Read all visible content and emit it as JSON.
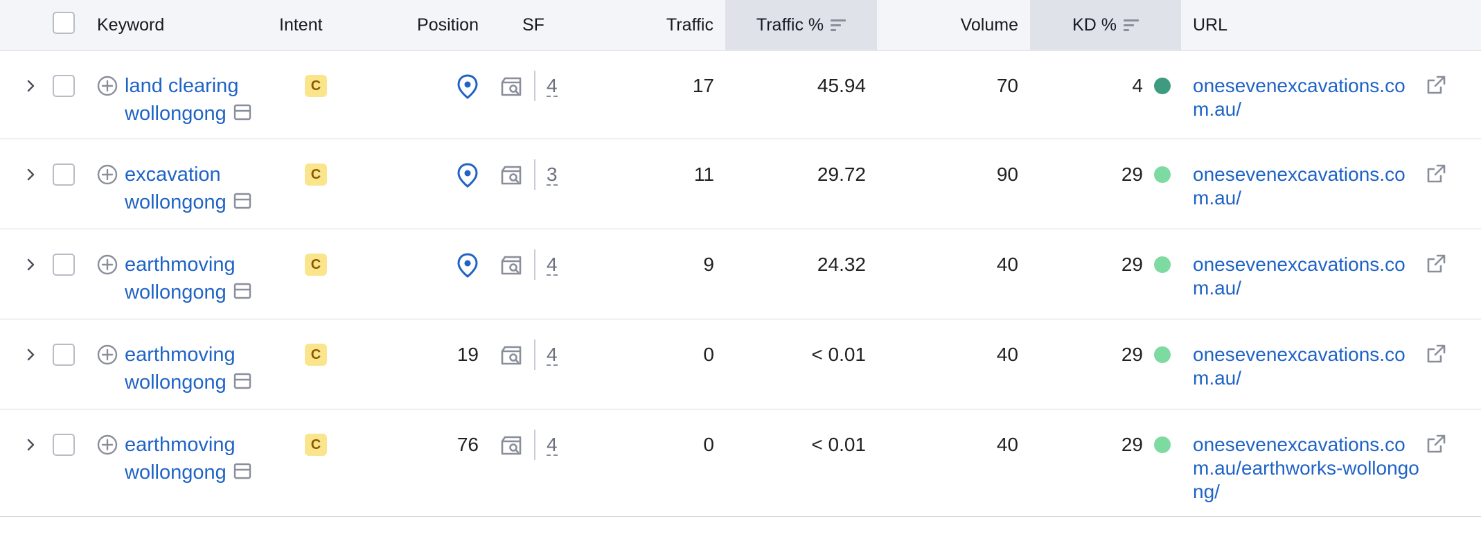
{
  "colors": {
    "link": "#1f63c6",
    "header_bg": "#f4f5f9",
    "sorted_header_bg": "#e0e2ea",
    "intent_badge_bg": "#fbe58c",
    "kd_dark": "#3f9b7f",
    "kd_light": "#7ddaa0",
    "border": "#d6d8df"
  },
  "header": {
    "keyword": "Keyword",
    "intent": "Intent",
    "position": "Position",
    "sf": "SF",
    "traffic": "Traffic",
    "traffic_pct": "Traffic %",
    "volume": "Volume",
    "kd_pct": "KD %",
    "url": "URL"
  },
  "rows": [
    {
      "keyword": "land clearing wollongong",
      "intent": "C",
      "position": "",
      "position_icon": "location-pin-icon",
      "sf": "4",
      "traffic": "17",
      "traffic_pct": "45.94",
      "volume": "70",
      "kd": "4",
      "kd_color": "#3f9b7f",
      "url": "onesevenexcavations.com.au/"
    },
    {
      "keyword": "excavation wollongong",
      "intent": "C",
      "position": "",
      "position_icon": "location-pin-icon",
      "sf": "3",
      "traffic": "11",
      "traffic_pct": "29.72",
      "volume": "90",
      "kd": "29",
      "kd_color": "#7ddaa0",
      "url": "onesevenexcavations.com.au/"
    },
    {
      "keyword": "earthmoving wollongong",
      "intent": "C",
      "position": "",
      "position_icon": "location-pin-icon",
      "sf": "4",
      "traffic": "9",
      "traffic_pct": "24.32",
      "volume": "40",
      "kd": "29",
      "kd_color": "#7ddaa0",
      "url": "onesevenexcavations.com.au/"
    },
    {
      "keyword": "earthmoving wollongong",
      "intent": "C",
      "position": "19",
      "position_icon": "",
      "sf": "4",
      "traffic": "0",
      "traffic_pct": "< 0.01",
      "volume": "40",
      "kd": "29",
      "kd_color": "#7ddaa0",
      "url": "onesevenexcavations.com.au/"
    },
    {
      "keyword": "earthmoving wollongong",
      "intent": "C",
      "position": "76",
      "position_icon": "",
      "sf": "4",
      "traffic": "0",
      "traffic_pct": "< 0.01",
      "volume": "40",
      "kd": "29",
      "kd_color": "#7ddaa0",
      "url": "onesevenexcavations.com.au/earthworks-wollongong/"
    }
  ]
}
